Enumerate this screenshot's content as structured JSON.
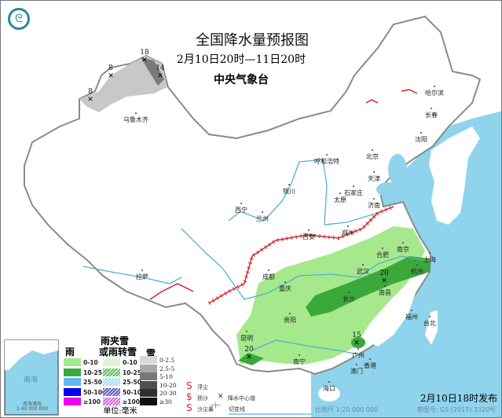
{
  "header": {
    "title": "全国降水量预报图",
    "subtitle": "2月10日20时—11日20时",
    "agency": "中央气象台"
  },
  "footer": {
    "publish": "2月10日18时发布",
    "scale": "比例尺 1:20 000 000",
    "map_code": "审图号: GS (2017) 3320号"
  },
  "cities": [
    "乌鲁木齐",
    "哈尔滨",
    "长春",
    "沈阳",
    "北京",
    "天津",
    "呼和浩特",
    "石家庄",
    "太原",
    "济南",
    "银川",
    "西宁",
    "兰州",
    "郑州",
    "西安",
    "合肥",
    "南京",
    "上海",
    "杭州",
    "武汉",
    "南昌",
    "长沙",
    "成都",
    "重庆",
    "贵阳",
    "昆明",
    "南宁",
    "广州",
    "香港",
    "澳门",
    "福州",
    "台北",
    "海口",
    "拉萨"
  ],
  "snow_centers": [
    "8",
    "18",
    "14",
    "8"
  ],
  "rain_centers": [
    "20",
    "15",
    "20"
  ],
  "legend": {
    "rain_title": "雨",
    "mixed_title_1": "雨夹雪",
    "mixed_title_2": "或雨转雪",
    "snow_title": "雪",
    "rain": [
      {
        "label": "0-10",
        "color": "#a6e88c"
      },
      {
        "label": "10-25",
        "color": "#3aa83a"
      },
      {
        "label": "25-50",
        "color": "#62b8f5"
      },
      {
        "label": "50-100",
        "color": "#0000f0"
      },
      {
        "label": "≥100",
        "color": "#f000f0"
      }
    ],
    "mixed": [
      {
        "label": "0-10",
        "color": "#d4f2c4"
      },
      {
        "label": "10-25",
        "color": "#6dbf5f"
      },
      {
        "label": "25-50",
        "color": "#a8dcf0"
      },
      {
        "label": "50-100",
        "color": "#6060c8"
      },
      {
        "label": "≥100",
        "color": "#d070e0"
      }
    ],
    "snow": [
      {
        "label": "0-2.5",
        "color": "#d8d8d8"
      },
      {
        "label": "2.5-5",
        "color": "#a8a8a8"
      },
      {
        "label": "5-10",
        "color": "#787878"
      },
      {
        "label": "10-20",
        "color": "#505050"
      },
      {
        "label": "20-30",
        "color": "#303030"
      },
      {
        "label": "≥30",
        "color": "#101010"
      }
    ],
    "symbols": {
      "floating_dust": "浮尘",
      "blowing_sand": "扬沙",
      "sandstorm": "沙尘暴",
      "precip_center": "降水中心值",
      "shear_line": "切变线"
    },
    "unit": "单位:毫米"
  },
  "inset": {
    "sea": "南海",
    "islands": "南海诸岛",
    "scale": "1:40 000 000"
  },
  "colors": {
    "sea": "#8fd3ec",
    "land": "#ffffff",
    "border": "#8a8a8a",
    "river": "#4fb3d0",
    "front": "#d2232a"
  }
}
